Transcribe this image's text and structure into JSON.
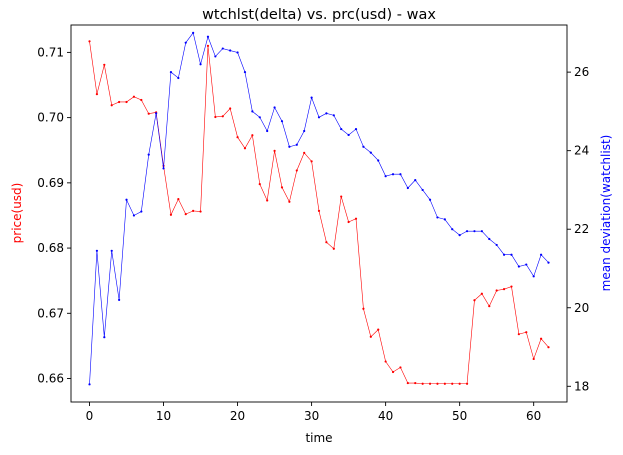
{
  "chart_data": {
    "type": "line",
    "title": "wtchlst(delta) vs. prc(usd) - wax",
    "xlabel": "time",
    "ylabel_left": "price(usd)",
    "ylabel_right": "mean deviation(watchlist)",
    "xlim": [
      -2.5,
      64.5
    ],
    "xticks": [
      0,
      10,
      20,
      30,
      40,
      50,
      60
    ],
    "ylim_left": [
      0.6564,
      0.7142
    ],
    "yticks_left": [
      0.66,
      0.67,
      0.68,
      0.69,
      0.7,
      0.71
    ],
    "ylim_right": [
      17.6,
      27.2
    ],
    "yticks_right": [
      18,
      20,
      22,
      24,
      26
    ],
    "colors": {
      "price": "#ff0000",
      "watchlist": "#0000ff"
    },
    "grid": false,
    "series": [
      {
        "name": "price(usd)",
        "axis": "left",
        "color": "#ff0000",
        "x": [
          0,
          1,
          2,
          3,
          4,
          5,
          6,
          7,
          8,
          9,
          10,
          11,
          12,
          13,
          14,
          15,
          16,
          17,
          18,
          19,
          20,
          21,
          22,
          23,
          24,
          25,
          26,
          27,
          28,
          29,
          30,
          31,
          32,
          33,
          34,
          35,
          36,
          37,
          38,
          39,
          40,
          41,
          42,
          43,
          44,
          45,
          46,
          47,
          48,
          49,
          50,
          51,
          52,
          53,
          54,
          55,
          56,
          57,
          58,
          59,
          60,
          61,
          62
        ],
        "values": [
          0.7117,
          0.7036,
          0.7081,
          0.7019,
          0.7024,
          0.7024,
          0.7032,
          0.7027,
          0.7006,
          0.7008,
          0.6926,
          0.6851,
          0.6875,
          0.6852,
          0.6857,
          0.6856,
          0.711,
          0.7001,
          0.7002,
          0.7014,
          0.697,
          0.6953,
          0.6973,
          0.6898,
          0.6873,
          0.6949,
          0.6893,
          0.6871,
          0.6919,
          0.6946,
          0.6933,
          0.6857,
          0.6809,
          0.6799,
          0.6879,
          0.684,
          0.6845,
          0.6707,
          0.6664,
          0.6675,
          0.6626,
          0.661,
          0.6617,
          0.6593,
          0.6593,
          0.6592,
          0.6592,
          0.6592,
          0.6592,
          0.6592,
          0.6592,
          0.6592,
          0.672,
          0.673,
          0.6711,
          0.6735,
          0.6737,
          0.6741,
          0.6668,
          0.6671,
          0.663,
          0.6661,
          0.6648
        ]
      },
      {
        "name": "mean deviation(watchlist)",
        "axis": "right",
        "color": "#0000ff",
        "x": [
          0,
          1,
          2,
          3,
          4,
          5,
          6,
          7,
          8,
          9,
          10,
          11,
          12,
          13,
          14,
          15,
          16,
          17,
          18,
          19,
          20,
          21,
          22,
          23,
          24,
          25,
          26,
          27,
          28,
          29,
          30,
          31,
          32,
          33,
          34,
          35,
          36,
          37,
          38,
          39,
          40,
          41,
          42,
          43,
          44,
          45,
          46,
          47,
          48,
          49,
          50,
          51,
          52,
          53,
          54,
          55,
          56,
          57,
          58,
          59,
          60,
          61,
          62
        ],
        "values": [
          18.05,
          21.45,
          19.25,
          21.45,
          20.2,
          22.75,
          22.35,
          22.45,
          23.9,
          24.95,
          23.55,
          26.0,
          25.85,
          26.75,
          27.0,
          26.2,
          26.9,
          26.4,
          26.6,
          26.55,
          26.5,
          26.0,
          25.0,
          24.85,
          24.5,
          25.1,
          24.75,
          24.1,
          24.15,
          24.5,
          25.35,
          24.85,
          24.95,
          24.9,
          24.55,
          24.4,
          24.55,
          24.1,
          23.95,
          23.75,
          23.35,
          23.4,
          23.4,
          23.05,
          23.25,
          23.0,
          22.75,
          22.3,
          22.25,
          22.0,
          21.85,
          21.95,
          21.95,
          21.95,
          21.75,
          21.6,
          21.35,
          21.35,
          21.05,
          21.1,
          20.8,
          21.35,
          21.15
        ]
      }
    ]
  }
}
